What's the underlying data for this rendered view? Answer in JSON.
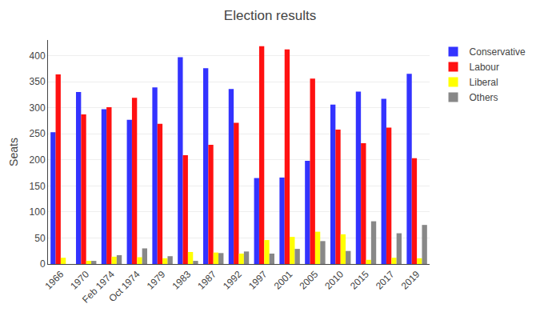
{
  "chart_data": {
    "type": "bar",
    "title": "Election results",
    "ylabel": "Seats",
    "categories": [
      "1966",
      "1970",
      "Feb 1974",
      "Oct 1974",
      "1979",
      "1983",
      "1987",
      "1992",
      "1997",
      "2001",
      "2005",
      "2010",
      "2015",
      "2017",
      "2019"
    ],
    "series": [
      {
        "name": "Conservative",
        "color": "#3333ff",
        "values": [
          253,
          330,
          297,
          277,
          339,
          397,
          376,
          336,
          165,
          166,
          198,
          306,
          331,
          317,
          365
        ]
      },
      {
        "name": "Labour",
        "color": "#ff1111",
        "values": [
          364,
          287,
          301,
          319,
          269,
          209,
          229,
          271,
          418,
          412,
          356,
          258,
          232,
          262,
          203
        ]
      },
      {
        "name": "Liberal",
        "color": "#ffff00",
        "values": [
          12,
          6,
          14,
          13,
          11,
          23,
          22,
          20,
          46,
          52,
          62,
          57,
          8,
          12,
          11
        ]
      },
      {
        "name": "Others",
        "color": "#888888",
        "values": [
          0,
          6,
          17,
          30,
          15,
          6,
          21,
          24,
          20,
          29,
          44,
          25,
          82,
          59,
          75
        ]
      }
    ],
    "ylim": [
      0,
      430
    ],
    "yticks": [
      0,
      50,
      100,
      150,
      200,
      250,
      300,
      350,
      400
    ],
    "grid": true,
    "legend": "right"
  }
}
